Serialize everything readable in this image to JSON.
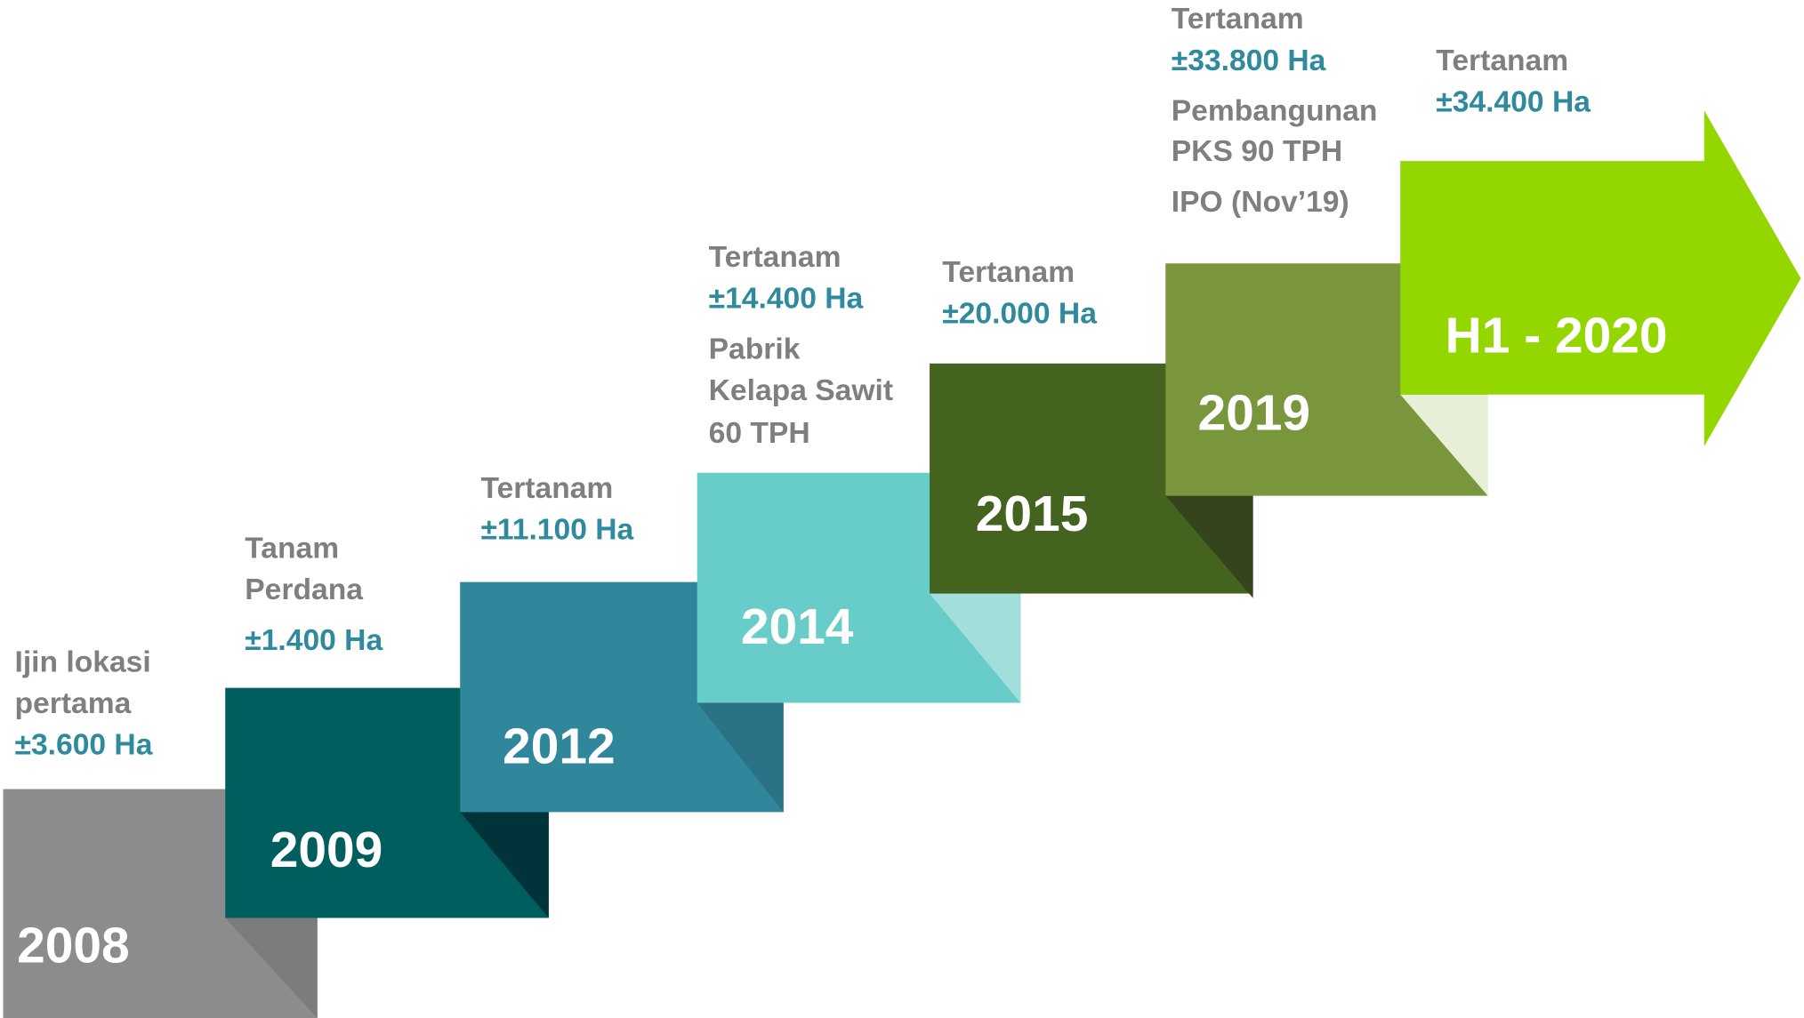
{
  "steps": [
    {
      "year": "2008",
      "notes": [
        "Ijin lokasi",
        "pertama",
        "±3.600 Ha"
      ]
    },
    {
      "year": "2009",
      "notes": [
        "Tanam",
        "Perdana",
        "±1.400 Ha"
      ]
    },
    {
      "year": "2012",
      "notes": [
        "Tertanam",
        "±11.100 Ha"
      ]
    },
    {
      "year": "2014",
      "notes": [
        "Tertanam",
        "±14.400 Ha",
        "Pabrik",
        "Kelapa Sawit",
        "60 TPH"
      ]
    },
    {
      "year": "2015",
      "notes": [
        "Tertanam",
        "±20.000 Ha"
      ]
    },
    {
      "year": "2019",
      "notes": [
        "Tertanam",
        "±33.800 Ha",
        "Pembangunan",
        "PKS 90 TPH",
        "IPO (Nov’19)"
      ]
    },
    {
      "year": "H1 - 2020",
      "notes": [
        "Tertanam",
        "±34.400 Ha"
      ]
    }
  ]
}
